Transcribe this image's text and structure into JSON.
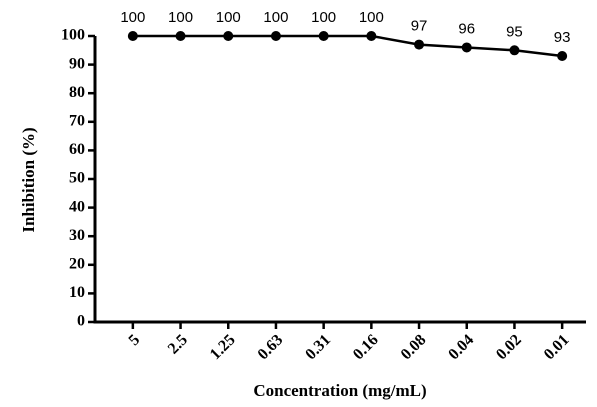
{
  "chart_data": {
    "type": "line",
    "x_label": "Concentration (mg/mL)",
    "y_label": "Inhibition (%)",
    "categories": [
      "5",
      "2.5",
      "1.25",
      "0.63",
      "0.31",
      "0.16",
      "0.08",
      "0.04",
      "0.02",
      "0.01"
    ],
    "values": [
      100,
      100,
      100,
      100,
      100,
      100,
      97,
      96,
      95,
      93
    ],
    "color": "#000000",
    "ylim": [
      0,
      100
    ],
    "yticks": [
      0,
      10,
      20,
      30,
      40,
      50,
      60,
      70,
      80,
      90,
      100
    ],
    "grid": false
  }
}
